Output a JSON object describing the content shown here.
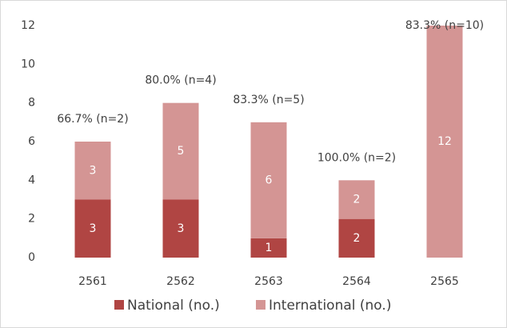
{
  "chart_data": {
    "type": "stacked_bar",
    "categories": [
      "2561",
      "2562",
      "2563",
      "2564",
      "2565"
    ],
    "series": [
      {
        "name": "National (no.)",
        "color": "#b04543",
        "values": [
          3,
          3,
          1,
          2,
          0
        ],
        "value_labels": [
          "3",
          "3",
          "1",
          "2",
          null
        ]
      },
      {
        "name": "International (no.)",
        "color": "#d49594",
        "values": [
          3,
          5,
          6,
          2,
          12
        ]
      }
    ],
    "annotations": [
      "66.7% (n=2)",
      "80.0% (n=4)",
      "83.3% (n=5)",
      "100.0% (n=2)",
      "83.3% (n=10)"
    ],
    "ylim": [
      0,
      12
    ],
    "yticks": [
      0,
      2,
      4,
      6,
      8,
      10,
      12
    ],
    "grid": false,
    "legend": "bottom"
  }
}
